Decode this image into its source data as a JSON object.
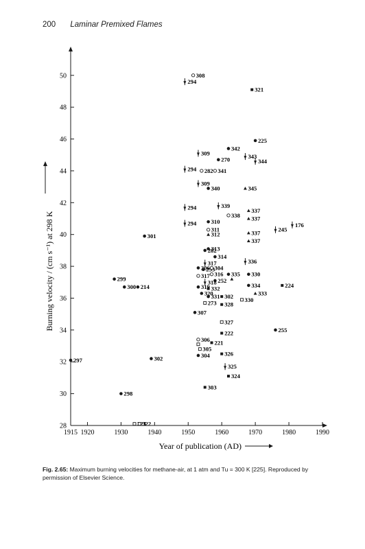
{
  "page": {
    "page_number": "200",
    "running_title": "Laminar Premixed Flames"
  },
  "caption": {
    "label": "Fig. 2.65:",
    "text": "Maximum burning velocities for methane-air, at 1 atm and Tu = 300 K [225]. Reproduced by permission of Elsevier Science."
  },
  "chart_data": {
    "type": "scatter",
    "xlabel": "Year of publication (AD)",
    "ylabel": "Burning velocity / (cm s⁻¹) at 298 K",
    "xlim": [
      1915,
      1990
    ],
    "ylim": [
      28,
      51.5
    ],
    "x_ticks": [
      1915,
      1920,
      1930,
      1940,
      1950,
      1960,
      1970,
      1980,
      1990
    ],
    "y_ticks": [
      28,
      30,
      32,
      34,
      36,
      38,
      40,
      42,
      44,
      46,
      48,
      50
    ],
    "grid": false,
    "legend": "none",
    "points": [
      {
        "x": 1951.5,
        "y": 50.0,
        "label": "308",
        "marker": "open-circle"
      },
      {
        "x": 1949,
        "y": 49.6,
        "label": "294",
        "marker": "arrow"
      },
      {
        "x": 1969,
        "y": 49.1,
        "label": "321",
        "marker": "square"
      },
      {
        "x": 1970,
        "y": 45.9,
        "label": "225",
        "marker": "circle"
      },
      {
        "x": 1962,
        "y": 45.4,
        "label": "342",
        "marker": "circle"
      },
      {
        "x": 1953,
        "y": 45.1,
        "label": "309",
        "marker": "arrow"
      },
      {
        "x": 1959,
        "y": 44.7,
        "label": "270",
        "marker": "circle"
      },
      {
        "x": 1967,
        "y": 44.9,
        "label": "343",
        "marker": "arrow"
      },
      {
        "x": 1970,
        "y": 44.6,
        "label": "344",
        "marker": "arrow"
      },
      {
        "x": 1949,
        "y": 44.1,
        "label": "294",
        "marker": "arrow"
      },
      {
        "x": 1954,
        "y": 44.0,
        "label": "282",
        "marker": "open-circle"
      },
      {
        "x": 1958,
        "y": 44.0,
        "label": "341",
        "marker": "open-circle"
      },
      {
        "x": 1953,
        "y": 43.2,
        "label": "309",
        "marker": "arrow"
      },
      {
        "x": 1956,
        "y": 42.9,
        "label": "340",
        "marker": "circle"
      },
      {
        "x": 1967,
        "y": 42.9,
        "label": "345",
        "marker": "triangle"
      },
      {
        "x": 1949,
        "y": 41.7,
        "label": "294",
        "marker": "arrow"
      },
      {
        "x": 1959,
        "y": 41.8,
        "label": "339",
        "marker": "arrow"
      },
      {
        "x": 1968,
        "y": 41.5,
        "label": "337",
        "marker": "triangle"
      },
      {
        "x": 1962,
        "y": 41.2,
        "label": "338",
        "marker": "open-circle"
      },
      {
        "x": 1968,
        "y": 41.0,
        "label": "337",
        "marker": "triangle"
      },
      {
        "x": 1949,
        "y": 40.7,
        "label": "294",
        "marker": "arrow"
      },
      {
        "x": 1956,
        "y": 40.8,
        "label": "310",
        "marker": "circle"
      },
      {
        "x": 1956,
        "y": 40.3,
        "label": "311",
        "marker": "open-circle"
      },
      {
        "x": 1956,
        "y": 40.0,
        "label": "312",
        "marker": "triangle"
      },
      {
        "x": 1937,
        "y": 39.9,
        "label": "301",
        "marker": "circle"
      },
      {
        "x": 1968,
        "y": 40.1,
        "label": "337",
        "marker": "triangle"
      },
      {
        "x": 1976,
        "y": 40.3,
        "label": "245",
        "marker": "arrow"
      },
      {
        "x": 1981,
        "y": 40.6,
        "label": "176",
        "marker": "arrow"
      },
      {
        "x": 1968,
        "y": 39.6,
        "label": "337",
        "marker": "triangle"
      },
      {
        "x": 1955,
        "y": 39.0,
        "label": "282",
        "marker": "circle"
      },
      {
        "x": 1956,
        "y": 39.1,
        "label": "313",
        "marker": "circle"
      },
      {
        "x": 1958,
        "y": 38.6,
        "label": "314",
        "marker": "circle"
      },
      {
        "x": 1955,
        "y": 38.2,
        "label": "317",
        "marker": "arrow"
      },
      {
        "x": 1967,
        "y": 38.3,
        "label": "336",
        "marker": "arrow"
      },
      {
        "x": 1953,
        "y": 37.9,
        "label": "306",
        "marker": "circle"
      },
      {
        "x": 1954.5,
        "y": 37.8,
        "label": "253",
        "marker": "circle"
      },
      {
        "x": 1957,
        "y": 37.9,
        "label": "304",
        "marker": "open-circle"
      },
      {
        "x": 1957,
        "y": 37.5,
        "label": "316",
        "marker": "open-circle"
      },
      {
        "x": 1953,
        "y": 37.4,
        "label": "317",
        "marker": "open-circle"
      },
      {
        "x": 1962,
        "y": 37.5,
        "label": "335",
        "marker": "circle"
      },
      {
        "x": 1968,
        "y": 37.5,
        "label": "330",
        "marker": "circle"
      },
      {
        "x": 1955,
        "y": 37.0,
        "label": "318",
        "marker": "arrow"
      },
      {
        "x": 1958,
        "y": 37.1,
        "label": "252",
        "marker": "circle"
      },
      {
        "x": 1963,
        "y": 37.2,
        "label": "",
        "marker": "triangle"
      },
      {
        "x": 1928,
        "y": 37.2,
        "label": "299",
        "marker": "circle"
      },
      {
        "x": 1953,
        "y": 36.7,
        "label": "319",
        "marker": "circle"
      },
      {
        "x": 1956,
        "y": 36.6,
        "label": "332",
        "marker": "square"
      },
      {
        "x": 1968,
        "y": 36.8,
        "label": "334",
        "marker": "circle"
      },
      {
        "x": 1931,
        "y": 36.7,
        "label": "300",
        "marker": "circle"
      },
      {
        "x": 1935,
        "y": 36.7,
        "label": "214",
        "marker": "circle"
      },
      {
        "x": 1978,
        "y": 36.8,
        "label": "224",
        "marker": "square"
      },
      {
        "x": 1954,
        "y": 36.3,
        "label": "320",
        "marker": "circle"
      },
      {
        "x": 1956,
        "y": 36.1,
        "label": "331",
        "marker": "circle"
      },
      {
        "x": 1960,
        "y": 36.1,
        "label": "302",
        "marker": "square"
      },
      {
        "x": 1970,
        "y": 36.3,
        "label": "333",
        "marker": "triangle"
      },
      {
        "x": 1966,
        "y": 35.9,
        "label": "330",
        "marker": "open-square"
      },
      {
        "x": 1955,
        "y": 35.7,
        "label": "273",
        "marker": "open-square"
      },
      {
        "x": 1960,
        "y": 35.6,
        "label": "328",
        "marker": "square"
      },
      {
        "x": 1952,
        "y": 35.1,
        "label": "307",
        "marker": "circle"
      },
      {
        "x": 1960,
        "y": 34.5,
        "label": "327",
        "marker": "open-square"
      },
      {
        "x": 1960,
        "y": 33.8,
        "label": "222",
        "marker": "square"
      },
      {
        "x": 1976,
        "y": 34.0,
        "label": "255",
        "marker": "circle"
      },
      {
        "x": 1953,
        "y": 33.4,
        "label": "306",
        "marker": "open-circle"
      },
      {
        "x": 1953,
        "y": 33.1,
        "label": "",
        "marker": "open-square"
      },
      {
        "x": 1957,
        "y": 33.2,
        "label": "221",
        "marker": "square"
      },
      {
        "x": 1953.5,
        "y": 32.8,
        "label": "305",
        "marker": "open-square"
      },
      {
        "x": 1953,
        "y": 32.4,
        "label": "304",
        "marker": "circle"
      },
      {
        "x": 1960,
        "y": 32.5,
        "label": "326",
        "marker": "square"
      },
      {
        "x": 1915,
        "y": 32.1,
        "label": "297",
        "marker": "circle"
      },
      {
        "x": 1939,
        "y": 32.2,
        "label": "302",
        "marker": "circle"
      },
      {
        "x": 1961,
        "y": 31.7,
        "label": "325",
        "marker": "arrow"
      },
      {
        "x": 1962,
        "y": 31.1,
        "label": "324",
        "marker": "square"
      },
      {
        "x": 1955,
        "y": 30.4,
        "label": "303",
        "marker": "square"
      },
      {
        "x": 1930,
        "y": 30.0,
        "label": "298",
        "marker": "circle"
      },
      {
        "x": 1934,
        "y": 28.1,
        "label": "323",
        "marker": "open-square"
      },
      {
        "x": 1935.5,
        "y": 28.1,
        "label": "322",
        "marker": "open-square"
      }
    ]
  }
}
